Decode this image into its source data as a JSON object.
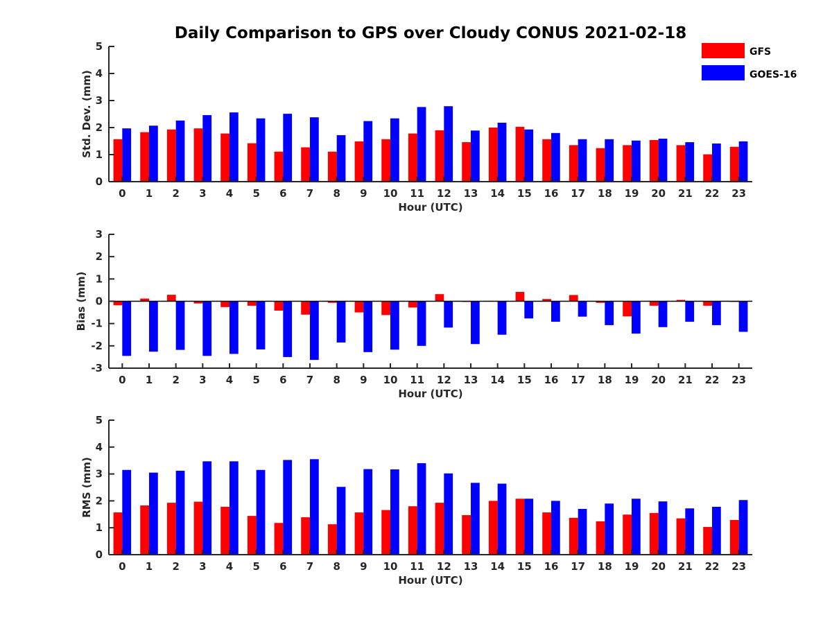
{
  "figure_title": "Daily Comparison to GPS over Cloudy CONUS 2021-02-18",
  "legend": [
    {
      "label": "GFS",
      "color": "#ff0000"
    },
    {
      "label": "GOES-16",
      "color": "#0000ff"
    }
  ],
  "chart_data": [
    {
      "type": "bar",
      "title": "Daily Comparison to GPS over Cloudy CONUS 2021-02-18",
      "xlabel": "Hour (UTC)",
      "ylabel": "Std. Dev. (mm)",
      "ylim": [
        0,
        5
      ],
      "yticks": [
        0,
        1,
        2,
        3,
        4,
        5
      ],
      "categories": [
        "0",
        "1",
        "2",
        "3",
        "4",
        "5",
        "6",
        "7",
        "8",
        "9",
        "10",
        "11",
        "12",
        "13",
        "14",
        "15",
        "16",
        "17",
        "18",
        "19",
        "20",
        "21",
        "22",
        "23"
      ],
      "series": [
        {
          "name": "GFS",
          "color": "#ff0000",
          "values": [
            1.57,
            1.83,
            1.93,
            1.97,
            1.78,
            1.42,
            1.11,
            1.27,
            1.11,
            1.49,
            1.57,
            1.78,
            1.9,
            1.46,
            2.0,
            2.03,
            1.57,
            1.35,
            1.24,
            1.35,
            1.54,
            1.35,
            1.01,
            1.29
          ]
        },
        {
          "name": "GOES-16",
          "color": "#0000ff",
          "values": [
            1.97,
            2.07,
            2.26,
            2.46,
            2.56,
            2.34,
            2.51,
            2.38,
            1.72,
            2.24,
            2.34,
            2.76,
            2.79,
            1.89,
            2.18,
            1.93,
            1.8,
            1.57,
            1.57,
            1.52,
            1.59,
            1.46,
            1.41,
            1.49
          ]
        }
      ]
    },
    {
      "type": "bar",
      "xlabel": "Hour (UTC)",
      "ylabel": "Bias (mm)",
      "ylim": [
        -3,
        3
      ],
      "yticks": [
        -3,
        -2,
        -1,
        0,
        1,
        2,
        3
      ],
      "categories": [
        "0",
        "1",
        "2",
        "3",
        "4",
        "5",
        "6",
        "7",
        "8",
        "9",
        "10",
        "11",
        "12",
        "13",
        "14",
        "15",
        "16",
        "17",
        "18",
        "19",
        "20",
        "21",
        "22",
        "23"
      ],
      "series": [
        {
          "name": "GFS",
          "color": "#ff0000",
          "values": [
            -0.18,
            0.12,
            0.29,
            -0.1,
            -0.26,
            -0.2,
            -0.42,
            -0.6,
            -0.07,
            -0.5,
            -0.62,
            -0.28,
            0.32,
            -0.03,
            0.0,
            0.42,
            0.1,
            0.28,
            -0.07,
            -0.68,
            -0.2,
            0.06,
            -0.2,
            -0.03
          ]
        },
        {
          "name": "GOES-16",
          "color": "#0000ff",
          "values": [
            -2.45,
            -2.26,
            -2.18,
            -2.45,
            -2.36,
            -2.16,
            -2.5,
            -2.63,
            -1.85,
            -2.28,
            -2.17,
            -2.0,
            -1.18,
            -1.92,
            -1.5,
            -0.77,
            -0.92,
            -0.69,
            -1.07,
            -1.45,
            -1.16,
            -0.92,
            -1.07,
            -1.37
          ]
        }
      ]
    },
    {
      "type": "bar",
      "xlabel": "Hour (UTC)",
      "ylabel": "RMS (mm)",
      "ylim": [
        0,
        5
      ],
      "yticks": [
        0,
        1,
        2,
        3,
        4,
        5
      ],
      "categories": [
        "0",
        "1",
        "2",
        "3",
        "4",
        "5",
        "6",
        "7",
        "8",
        "9",
        "10",
        "11",
        "12",
        "13",
        "14",
        "15",
        "16",
        "17",
        "18",
        "19",
        "20",
        "21",
        "22",
        "23"
      ],
      "series": [
        {
          "name": "GFS",
          "color": "#ff0000",
          "values": [
            1.57,
            1.83,
            1.93,
            1.97,
            1.78,
            1.44,
            1.18,
            1.39,
            1.13,
            1.57,
            1.66,
            1.8,
            1.93,
            1.47,
            2.0,
            2.08,
            1.57,
            1.37,
            1.24,
            1.49,
            1.55,
            1.35,
            1.03,
            1.29
          ]
        },
        {
          "name": "GOES-16",
          "color": "#0000ff",
          "values": [
            3.15,
            3.05,
            3.12,
            3.47,
            3.47,
            3.15,
            3.52,
            3.55,
            2.52,
            3.18,
            3.17,
            3.4,
            3.02,
            2.67,
            2.64,
            2.08,
            2.0,
            1.7,
            1.9,
            2.08,
            1.98,
            1.72,
            1.78,
            2.03
          ]
        }
      ]
    }
  ]
}
